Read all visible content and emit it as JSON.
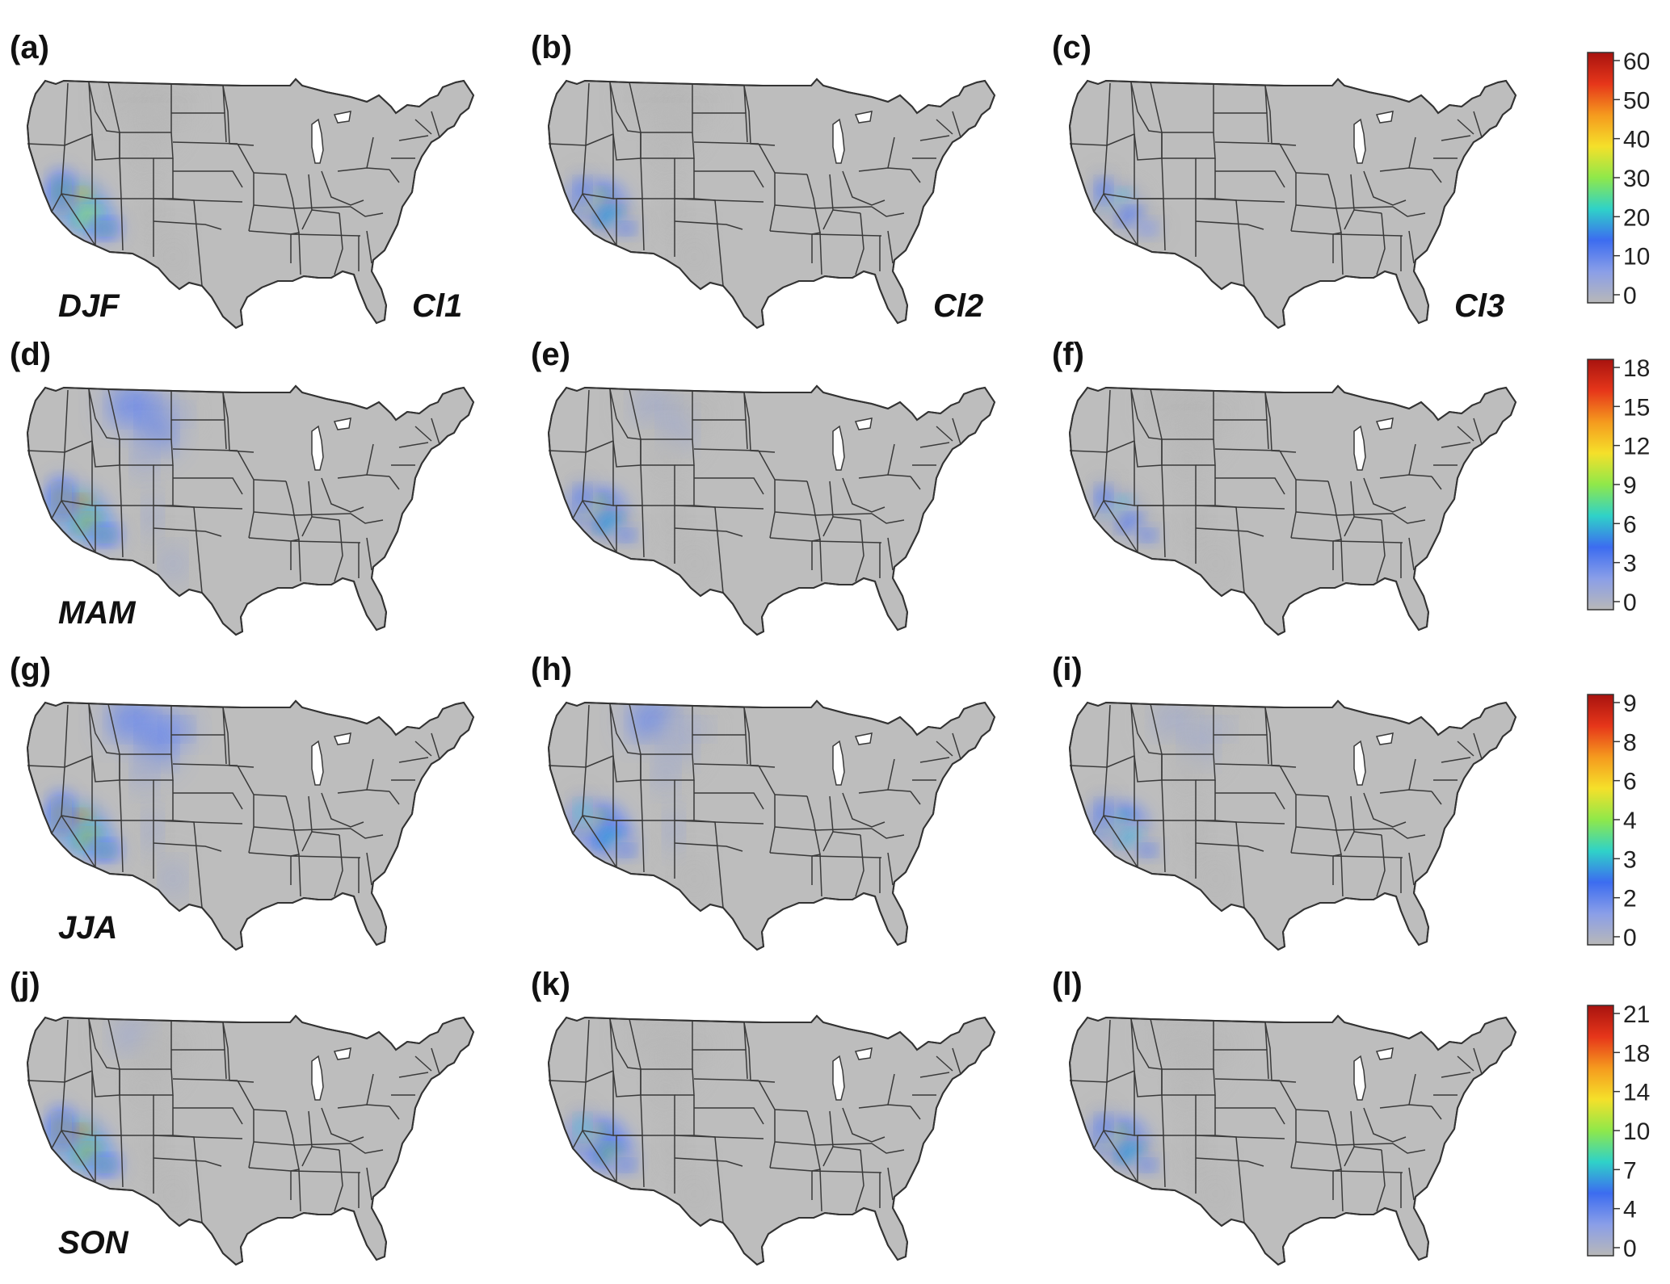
{
  "panels": [
    {
      "label": "(a)",
      "season": "DJF",
      "cluster": "Cl1",
      "row": 0,
      "col": 0
    },
    {
      "label": "(b)",
      "season": "",
      "cluster": "Cl2",
      "row": 0,
      "col": 1
    },
    {
      "label": "(c)",
      "season": "",
      "cluster": "Cl3",
      "row": 0,
      "col": 2
    },
    {
      "label": "(d)",
      "season": "MAM",
      "cluster": "",
      "row": 1,
      "col": 0
    },
    {
      "label": "(e)",
      "season": "",
      "cluster": "",
      "row": 1,
      "col": 1
    },
    {
      "label": "(f)",
      "season": "",
      "cluster": "",
      "row": 1,
      "col": 2
    },
    {
      "label": "(g)",
      "season": "JJA",
      "cluster": "",
      "row": 2,
      "col": 0
    },
    {
      "label": "(h)",
      "season": "",
      "cluster": "",
      "row": 2,
      "col": 1
    },
    {
      "label": "(i)",
      "season": "",
      "cluster": "",
      "row": 2,
      "col": 2
    },
    {
      "label": "(j)",
      "season": "SON",
      "cluster": "",
      "row": 3,
      "col": 0
    },
    {
      "label": "(k)",
      "season": "",
      "cluster": "",
      "row": 3,
      "col": 1
    },
    {
      "label": "(l)",
      "season": "",
      "cluster": "",
      "row": 3,
      "col": 2
    }
  ],
  "colorbars": [
    {
      "ticks": [
        "60",
        "50",
        "40",
        "30",
        "20",
        "10",
        "0"
      ]
    },
    {
      "ticks": [
        "18",
        "15",
        "12",
        "9",
        "6",
        "3",
        "0"
      ]
    },
    {
      "ticks": [
        "9",
        "8",
        "6",
        "4",
        "3",
        "2",
        "0"
      ]
    },
    {
      "ticks": [
        "21",
        "18",
        "14",
        "10",
        "7",
        "4",
        "0"
      ]
    }
  ],
  "colorscale": [
    "#b8b8b8",
    "#8a9ee8",
    "#3c6cf0",
    "#2fd2c8",
    "#8fe84a",
    "#f5e02a",
    "#f59a1e",
    "#e6361a",
    "#a8130f"
  ],
  "intensity": [
    [
      0.92,
      0.55,
      0.42
    ],
    [
      0.95,
      0.55,
      0.45
    ],
    [
      0.95,
      0.6,
      0.5
    ],
    [
      0.95,
      0.62,
      0.55
    ]
  ],
  "secondary_intensity": [
    [
      0.1,
      0.05,
      0.03
    ],
    [
      0.35,
      0.18,
      0.12
    ],
    [
      0.4,
      0.3,
      0.22
    ],
    [
      0.15,
      0.08,
      0.06
    ]
  ]
}
